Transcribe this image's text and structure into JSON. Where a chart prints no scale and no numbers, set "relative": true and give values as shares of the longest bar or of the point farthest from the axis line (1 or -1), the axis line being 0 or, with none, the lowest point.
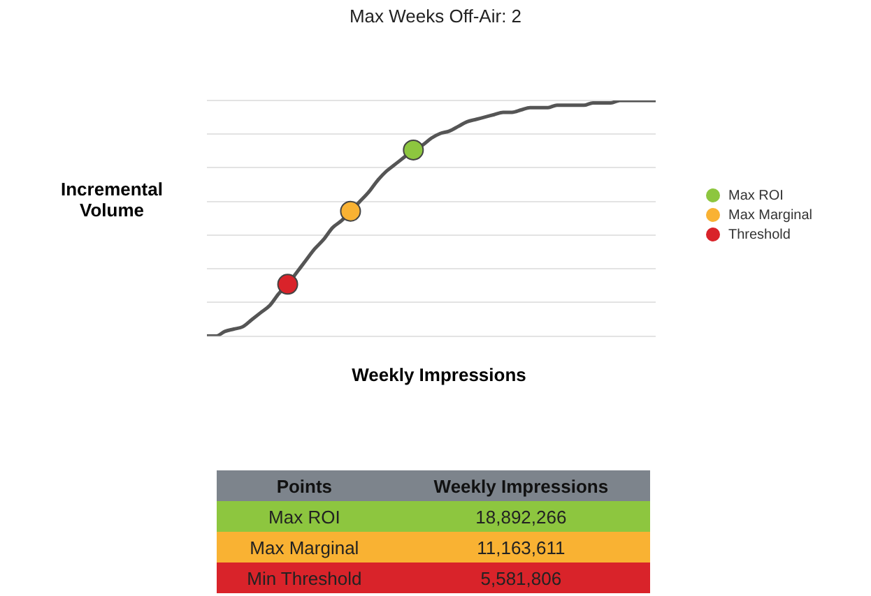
{
  "chart_data": {
    "type": "line",
    "title": "Max Weeks Off-Air: 2",
    "xlabel": "Weekly Impressions",
    "ylabel": "Incremental Volume",
    "relative": true,
    "grid": "y",
    "legend": "right",
    "marker": "circle",
    "categories": [
      null,
      null,
      null,
      null,
      null,
      null,
      null,
      null,
      null,
      null,
      null,
      null,
      null,
      null,
      null,
      null,
      null,
      null,
      null,
      null,
      null,
      null,
      null,
      null,
      null,
      null,
      null,
      null,
      null,
      null,
      null,
      null,
      null,
      null,
      null,
      null,
      null,
      null,
      null,
      null,
      null,
      null,
      null,
      null,
      null,
      null,
      null,
      null,
      null,
      null,
      null
    ],
    "series": [
      {
        "color": "#555555",
        "marker": "none",
        "values": [
          0,
          0,
          0.02,
          0.03,
          0.04,
          0.07,
          0.1,
          0.13,
          0.18,
          0.22,
          0.27,
          0.32,
          0.37,
          0.41,
          0.46,
          0.49,
          0.53,
          0.57,
          0.61,
          0.66,
          0.7,
          0.73,
          0.76,
          0.79,
          0.81,
          0.84,
          0.86,
          0.87,
          0.89,
          0.91,
          0.92,
          0.93,
          0.94,
          0.95,
          0.95,
          0.96,
          0.97,
          0.97,
          0.97,
          0.98,
          0.98,
          0.98,
          0.98,
          0.99,
          0.99,
          0.99,
          1,
          1,
          1,
          1,
          1
        ]
      },
      {
        "name": "Max ROI",
        "color": "#8dc63f",
        "values": [
          null,
          null,
          null,
          null,
          null,
          null,
          null,
          null,
          null,
          null,
          null,
          null,
          null,
          null,
          null,
          null,
          null,
          null,
          null,
          null,
          null,
          null,
          null,
          0.79,
          null,
          null,
          null,
          null,
          null,
          null,
          null,
          null,
          null,
          null,
          null,
          null,
          null,
          null,
          null,
          null,
          null,
          null,
          null,
          null,
          null,
          null,
          null,
          null,
          null,
          null,
          null
        ]
      },
      {
        "name": "Max Marginal",
        "color": "#f9b233",
        "values": [
          null,
          null,
          null,
          null,
          null,
          null,
          null,
          null,
          null,
          null,
          null,
          null,
          null,
          null,
          null,
          null,
          0.53,
          null,
          null,
          null,
          null,
          null,
          null,
          null,
          null,
          null,
          null,
          null,
          null,
          null,
          null,
          null,
          null,
          null,
          null,
          null,
          null,
          null,
          null,
          null,
          null,
          null,
          null,
          null,
          null,
          null,
          null,
          null,
          null,
          null,
          null
        ]
      },
      {
        "name": "Threshold",
        "color": "#d9232a",
        "values": [
          null,
          null,
          null,
          null,
          null,
          null,
          null,
          null,
          null,
          0.22,
          null,
          null,
          null,
          null,
          null,
          null,
          null,
          null,
          null,
          null,
          null,
          null,
          null,
          null,
          null,
          null,
          null,
          null,
          null,
          null,
          null,
          null,
          null,
          null,
          null,
          null,
          null,
          null,
          null,
          null,
          null,
          null,
          null,
          null,
          null,
          null,
          null,
          null,
          null,
          null,
          null
        ]
      }
    ],
    "annotations": [
      "Points",
      "Weekly Impressions",
      "Max ROI",
      "18,892,266",
      "Max Marginal",
      "11,163,611",
      "Min Threshold",
      "5,581,806"
    ]
  }
}
